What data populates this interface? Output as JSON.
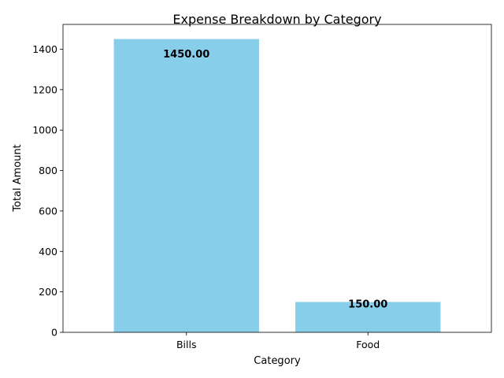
{
  "chart_data": {
    "type": "bar",
    "title": "Expense Breakdown by Category",
    "xlabel": "Category",
    "ylabel": "Total Amount",
    "categories": [
      "Bills",
      "Food"
    ],
    "values": [
      1450,
      150
    ],
    "value_labels": [
      "1450.00",
      "150.00"
    ],
    "ylim": [
      0,
      1522.5
    ],
    "yticks": [
      0,
      200,
      400,
      600,
      800,
      1000,
      1200,
      1400
    ],
    "bar_color": "#87ceeb",
    "grid": false
  }
}
